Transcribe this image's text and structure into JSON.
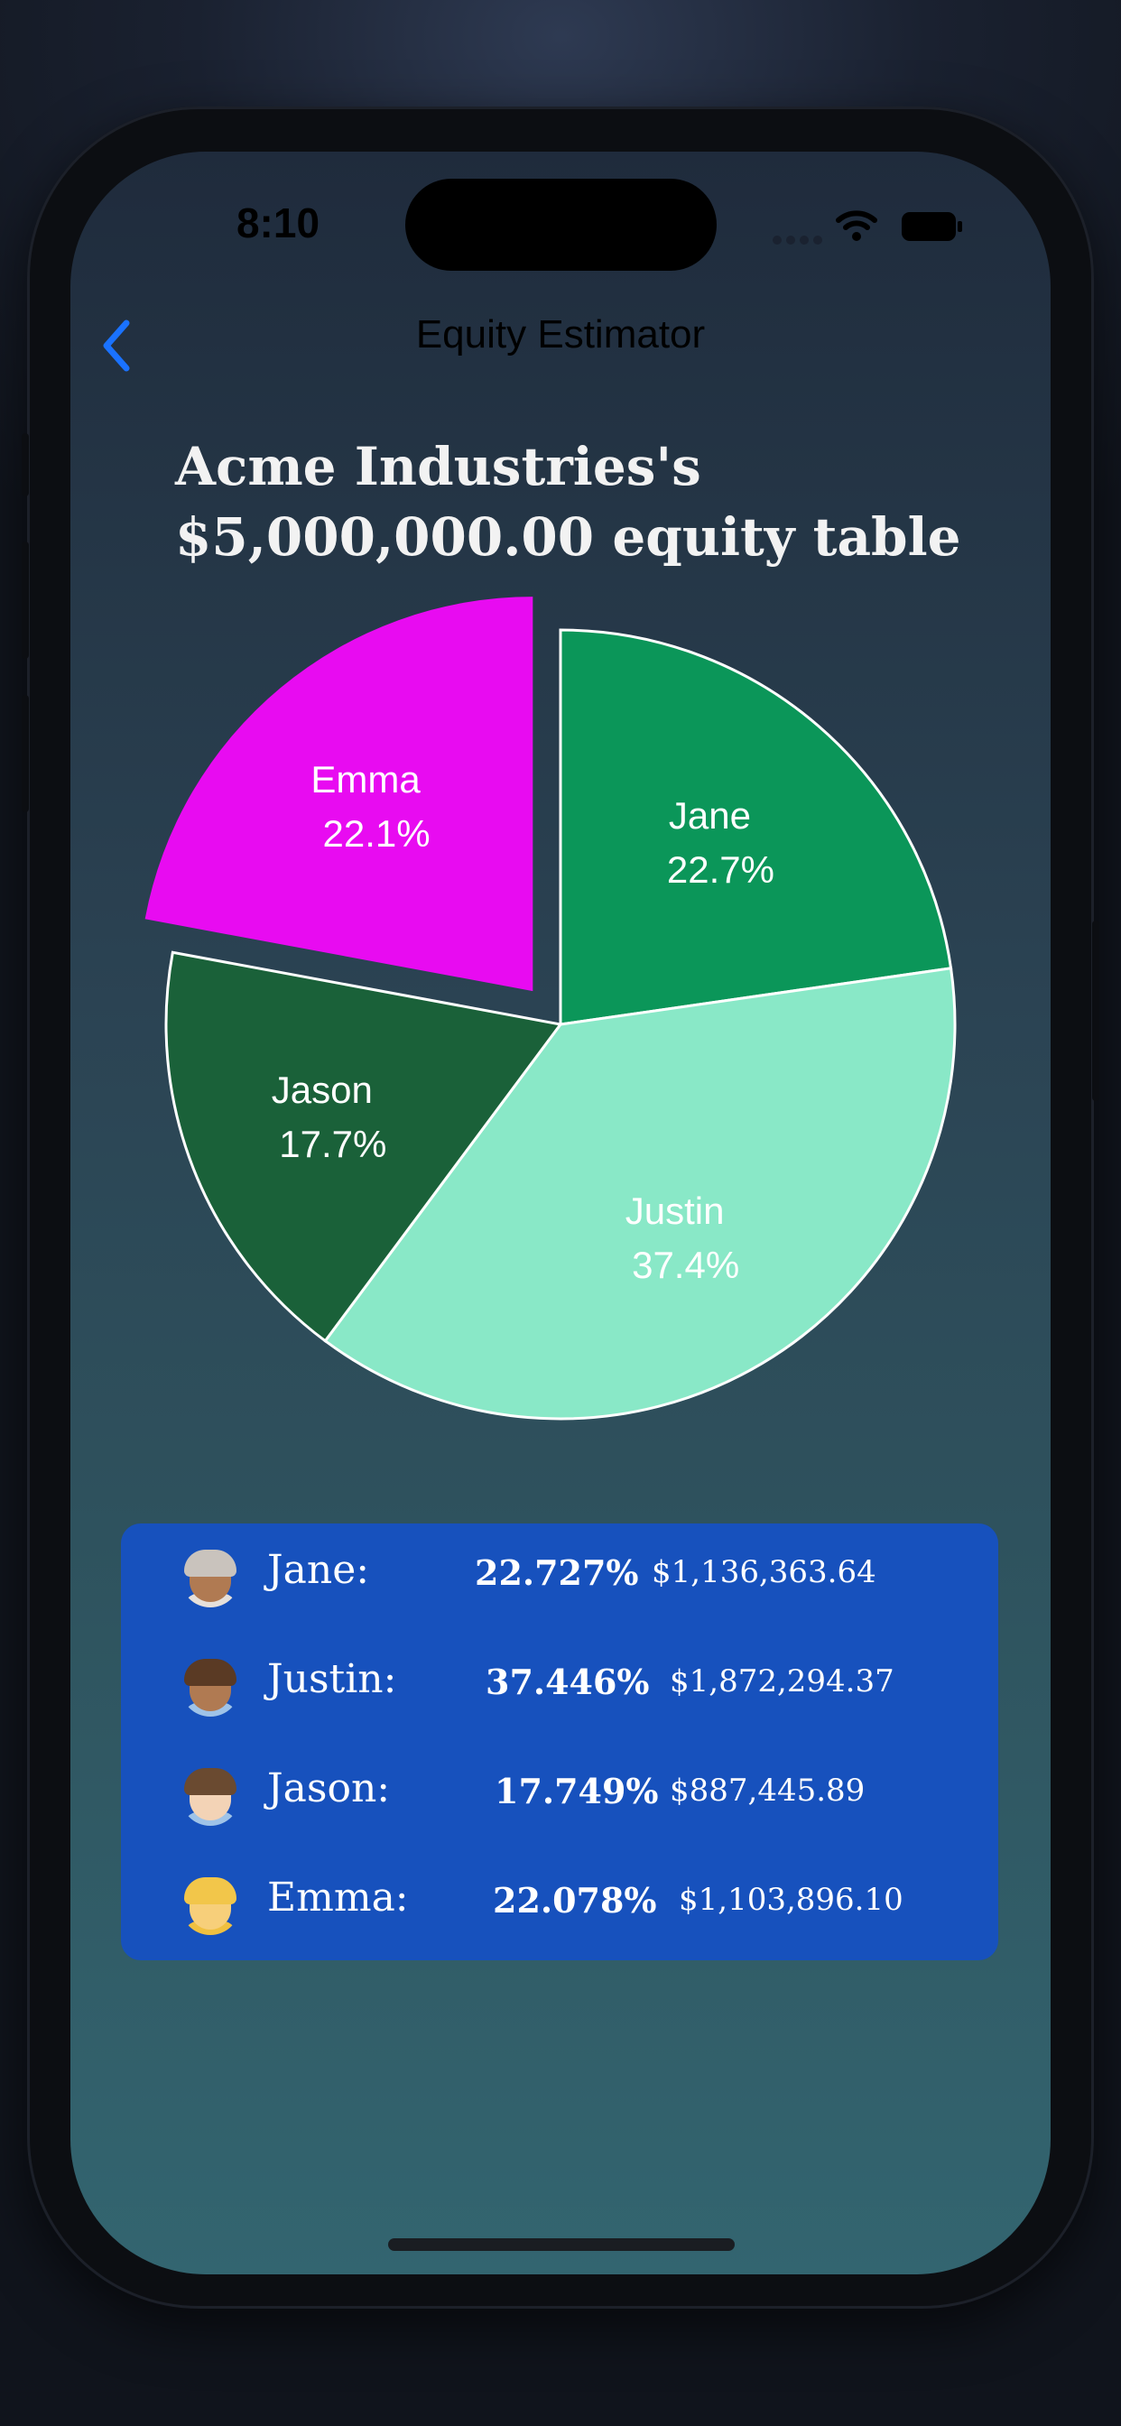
{
  "status_bar": {
    "time": "8:10"
  },
  "nav": {
    "title": "Equity Estimator",
    "back_icon": "chevron-left-icon"
  },
  "heading": {
    "line1": "Acme Industries's",
    "line2": "$5,000,000.00 equity table"
  },
  "chart_data": {
    "type": "pie",
    "title": "",
    "exploded": "Emma",
    "slices": [
      {
        "name": "Jane",
        "label": "22.7%",
        "value": 22.727,
        "color": "#0b9659"
      },
      {
        "name": "Justin",
        "label": "37.4%",
        "value": 37.446,
        "color": "#89e8c7"
      },
      {
        "name": "Jason",
        "label": "17.7%",
        "value": 17.749,
        "color": "#1a6139"
      },
      {
        "name": "Emma",
        "label": "22.1%",
        "value": 22.078,
        "color": "#e80bf1"
      }
    ]
  },
  "equity_table": {
    "rows": [
      {
        "avatar": "woman-gray-hair-avatar",
        "name": "Jane:",
        "percent": "22.727%",
        "amount": "$1,136,363.64",
        "skin": "#b07a52",
        "hair": "#c9c3bd",
        "shirt": "#e6e0da"
      },
      {
        "avatar": "man-office-worker-avatar",
        "name": "Justin:",
        "percent": "37.446%",
        "amount": "$1,872,294.37",
        "skin": "#b07a52",
        "hair": "#5a3a24",
        "shirt": "#9fc3e8"
      },
      {
        "avatar": "man-office-worker-avatar",
        "name": "Jason:",
        "percent": "17.749%",
        "amount": "$887,445.89",
        "skin": "#f3d3b6",
        "hair": "#6a4a30",
        "shirt": "#9fc3e8"
      },
      {
        "avatar": "woman-blonde-avatar",
        "name": "Emma:",
        "percent": "22.078%",
        "amount": "$1,103,896.10",
        "skin": "#f7cf7a",
        "hair": "#f2c64a",
        "shirt": "#f0c040"
      }
    ]
  }
}
